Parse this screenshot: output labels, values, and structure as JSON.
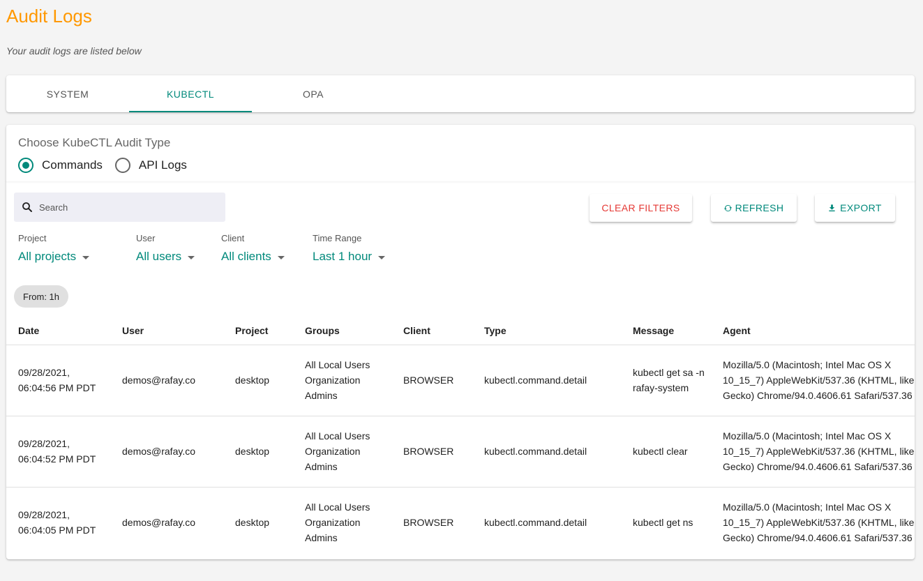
{
  "page": {
    "title": "Audit Logs",
    "subtitle": "Your audit logs are listed below"
  },
  "tabs": [
    {
      "label": "SYSTEM",
      "active": false
    },
    {
      "label": "KUBECTL",
      "active": true
    },
    {
      "label": "OPA",
      "active": false
    }
  ],
  "audit_type": {
    "label": "Choose KubeCTL Audit Type",
    "options": [
      {
        "label": "Commands",
        "checked": true
      },
      {
        "label": "API Logs",
        "checked": false
      }
    ]
  },
  "search": {
    "placeholder": "Search",
    "value": ""
  },
  "buttons": {
    "clear_filters": "CLEAR FILTERS",
    "refresh": "REFRESH",
    "export": "EXPORT"
  },
  "filters": {
    "project": {
      "label": "Project",
      "value": "All projects"
    },
    "user": {
      "label": "User",
      "value": "All users"
    },
    "client": {
      "label": "Client",
      "value": "All clients"
    },
    "time_range": {
      "label": "Time Range",
      "value": "Last 1 hour"
    }
  },
  "chip": "From: 1h",
  "table": {
    "headers": [
      "Date",
      "User",
      "Project",
      "Groups",
      "Client",
      "Type",
      "Message",
      "Agent"
    ],
    "rows": [
      {
        "date": "09/28/2021, 06:04:56 PM PDT",
        "user": "demos@rafay.co",
        "project": "desktop",
        "groups": "All Local Users Organization Admins",
        "client": "BROWSER",
        "type": "kubectl.command.detail",
        "message": "kubectl get sa -n rafay-system",
        "agent": "Mozilla/5.0 (Macintosh; Intel Mac OS X 10_15_7) AppleWebKit/537.36 (KHTML, like Gecko) Chrome/94.0.4606.61 Safari/537.36"
      },
      {
        "date": "09/28/2021, 06:04:52 PM PDT",
        "user": "demos@rafay.co",
        "project": "desktop",
        "groups": "All Local Users Organization Admins",
        "client": "BROWSER",
        "type": "kubectl.command.detail",
        "message": "kubectl clear",
        "agent": "Mozilla/5.0 (Macintosh; Intel Mac OS X 10_15_7) AppleWebKit/537.36 (KHTML, like Gecko) Chrome/94.0.4606.61 Safari/537.36"
      },
      {
        "date": "09/28/2021, 06:04:05 PM PDT",
        "user": "demos@rafay.co",
        "project": "desktop",
        "groups": "All Local Users Organization Admins",
        "client": "BROWSER",
        "type": "kubectl.command.detail",
        "message": "kubectl get ns",
        "agent": "Mozilla/5.0 (Macintosh; Intel Mac OS X 10_15_7) AppleWebKit/537.36 (KHTML, like Gecko) Chrome/94.0.4606.61 Safari/537.36"
      }
    ]
  },
  "icons": {
    "search": "search-icon",
    "refresh": "refresh-icon",
    "export": "download-icon"
  },
  "colors": {
    "title": "#ff9800",
    "accent": "#00897b",
    "danger": "#e53935"
  }
}
